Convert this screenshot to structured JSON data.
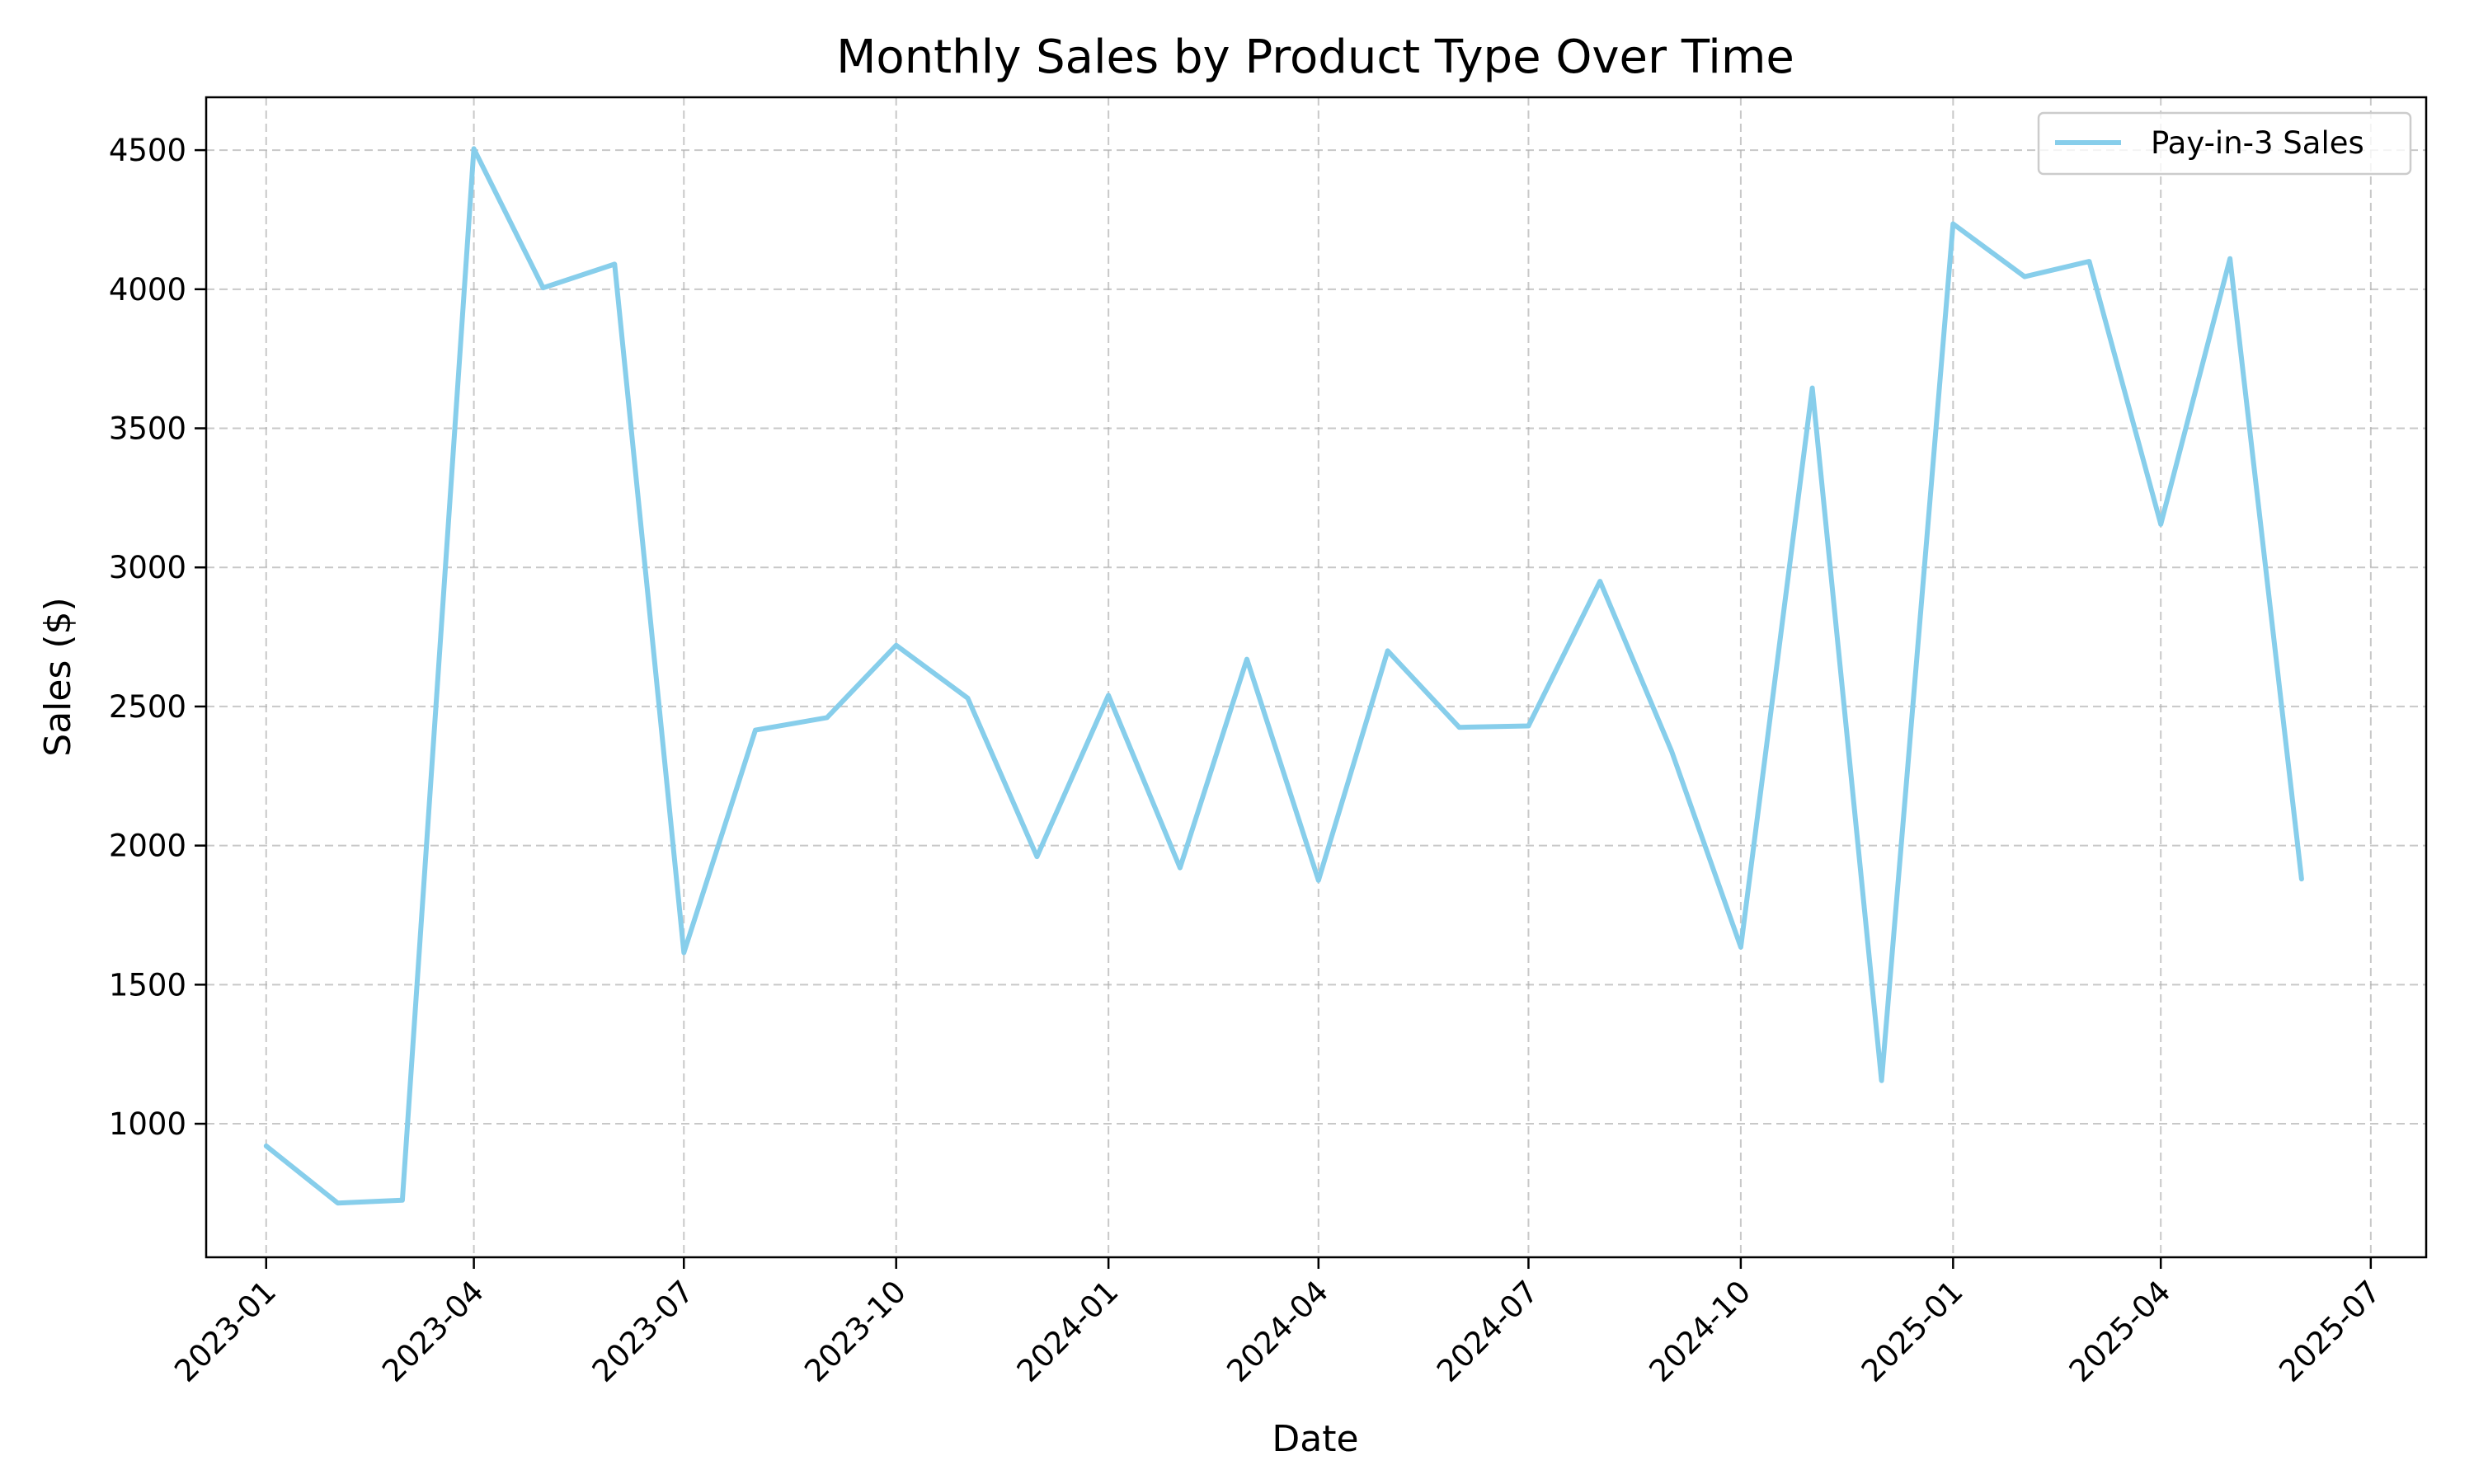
{
  "chart_data": {
    "type": "line",
    "title": "Monthly Sales by Product Type Over Time",
    "xlabel": "Date",
    "ylabel": "Sales ($)",
    "x_ticks": [
      "2023-01",
      "2023-04",
      "2023-07",
      "2023-10",
      "2024-01",
      "2024-04",
      "2024-07",
      "2024-10",
      "2025-01",
      "2025-04",
      "2025-07"
    ],
    "y_ticks": [
      1000,
      1500,
      2000,
      2500,
      3000,
      3500,
      4000,
      4500
    ],
    "ylim": [
      520,
      4690
    ],
    "xlim": [
      "2022-12-06",
      "2025-07-25"
    ],
    "grid": true,
    "legend_position": "top-right",
    "series": [
      {
        "name": "Pay-in-3 Sales",
        "color": "#87CEEB",
        "x": [
          "2023-01-01",
          "2023-02-01",
          "2023-03-01",
          "2023-04-01",
          "2023-05-01",
          "2023-06-01",
          "2023-07-01",
          "2023-08-01",
          "2023-09-01",
          "2023-10-01",
          "2023-11-01",
          "2023-12-01",
          "2024-01-01",
          "2024-02-01",
          "2024-03-01",
          "2024-04-01",
          "2024-05-01",
          "2024-06-01",
          "2024-07-01",
          "2024-08-01",
          "2024-09-01",
          "2024-10-01",
          "2024-11-01",
          "2024-12-01",
          "2025-01-01",
          "2025-02-01",
          "2025-03-01",
          "2025-04-01",
          "2025-05-01",
          "2025-06-01"
        ],
        "values": [
          920,
          715,
          725,
          4505,
          4005,
          4090,
          1615,
          2415,
          2460,
          2720,
          2530,
          1960,
          2540,
          1920,
          2670,
          1875,
          2700,
          2425,
          2430,
          2950,
          2340,
          1635,
          3645,
          1155,
          4235,
          4045,
          4100,
          3155,
          4110,
          1880
        ]
      }
    ]
  }
}
